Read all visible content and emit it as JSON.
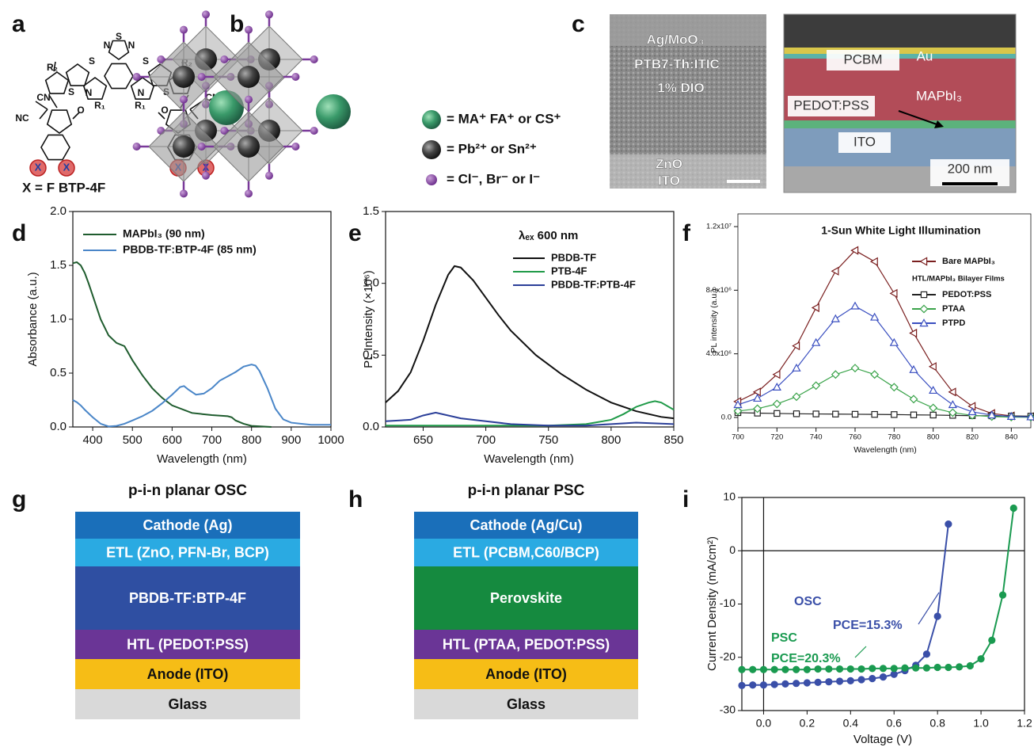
{
  "panel_labels": [
    "a",
    "b",
    "c",
    "d",
    "e",
    "f",
    "g",
    "h",
    "i"
  ],
  "molecule": {
    "atoms": [
      "S",
      "N",
      "N",
      "S",
      "S",
      "R₂",
      "R₂",
      "S",
      "N",
      "N",
      "S",
      "R₁",
      "R₁",
      "CN",
      "NC",
      "O",
      "O",
      "CN",
      "CN",
      "X",
      "X",
      "X",
      "X"
    ],
    "caption": "X = F BTP-4F"
  },
  "crystal": {
    "legend": [
      "= MA⁺ FA⁺ or CS⁺",
      "= Pb²⁺ or Sn²⁺",
      "= Cl⁻, Br⁻ or I⁻"
    ]
  },
  "micrographs": [
    {
      "labels": [
        "Ag/MoO₃",
        "PTB7-Th:ITIC",
        "1% DIO",
        "ZnO",
        "ITO"
      ]
    },
    {
      "labels": [
        "PCBM",
        "Au",
        "MAPbI₃",
        "PEDOT:PSS",
        "ITO",
        "200 nm"
      ]
    }
  ],
  "stacks": [
    {
      "title": "p-i-n planar OSC",
      "layers": [
        {
          "label": "Cathode (Ag)",
          "color": "#1a6fba"
        },
        {
          "label": "ETL (ZnO, PFN-Br, BCP)",
          "color": "#2aaae2"
        },
        {
          "label": "PBDB-TF:BTP-4F",
          "color": "#2f4fa2"
        },
        {
          "label": "HTL (PEDOT:PSS)",
          "color": "#6a3596"
        },
        {
          "label": "Anode (ITO)",
          "color": "#f6bd16"
        },
        {
          "label": "Glass",
          "color": "#d9d9d9"
        }
      ]
    },
    {
      "title": "p-i-n planar PSC",
      "layers": [
        {
          "label": "Cathode (Ag/Cu)",
          "color": "#1a6fba"
        },
        {
          "label": "ETL (PCBM,C60/BCP)",
          "color": "#2aaae2"
        },
        {
          "label": "Perovskite",
          "color": "#158a3f"
        },
        {
          "label": "HTL (PTAA, PEDOT:PSS)",
          "color": "#6a3596"
        },
        {
          "label": "Anode (ITO)",
          "color": "#f6bd16"
        },
        {
          "label": "Glass",
          "color": "#d9d9d9"
        }
      ]
    }
  ],
  "chart_data": [
    {
      "type": "line",
      "xlabel": "Wavelength (nm)",
      "ylabel": "Absorbance (a.u.)",
      "xlim": [
        350,
        1000
      ],
      "xticks": [
        400,
        500,
        600,
        700,
        800,
        900,
        1000
      ],
      "ylim": [
        0,
        2
      ],
      "yticks": [
        {
          "value": 0,
          "label": "0.0"
        },
        0.5,
        {
          "value": 1,
          "label": "1.0"
        },
        1.5,
        {
          "value": 2,
          "label": "2.0"
        }
      ],
      "legend": "upper left",
      "series": [
        {
          "name": "MAPbI₃ (90 nm)",
          "color": "#1f5c2e",
          "x": [
            350,
            360,
            370,
            380,
            390,
            400,
            420,
            440,
            460,
            480,
            500,
            525,
            550,
            575,
            600,
            650,
            700,
            740,
            750,
            760,
            780,
            800,
            850
          ],
          "values": [
            1.52,
            1.53,
            1.5,
            1.43,
            1.33,
            1.22,
            1.0,
            0.85,
            0.78,
            0.75,
            0.62,
            0.48,
            0.36,
            0.27,
            0.2,
            0.13,
            0.11,
            0.1,
            0.09,
            0.06,
            0.03,
            0.01,
            0
          ]
        },
        {
          "name": "PBDB-TF:BTP-4F (85 nm)",
          "color": "#4a86c8",
          "x": [
            350,
            360,
            370,
            380,
            400,
            420,
            440,
            460,
            480,
            500,
            525,
            550,
            575,
            600,
            620,
            630,
            640,
            660,
            680,
            700,
            720,
            740,
            760,
            780,
            800,
            810,
            820,
            840,
            860,
            880,
            900,
            950,
            1000
          ],
          "values": [
            0.25,
            0.23,
            0.2,
            0.16,
            0.09,
            0.03,
            0.005,
            0.01,
            0.03,
            0.06,
            0.1,
            0.15,
            0.22,
            0.3,
            0.37,
            0.38,
            0.35,
            0.3,
            0.31,
            0.36,
            0.43,
            0.47,
            0.51,
            0.56,
            0.58,
            0.57,
            0.52,
            0.36,
            0.17,
            0.07,
            0.04,
            0.02,
            0.02
          ]
        }
      ]
    },
    {
      "type": "line",
      "xlabel": "Wavelength (nm)",
      "ylabel": "PL Intensity (×10⁶)",
      "annotation": "λₑₓ 600 nm",
      "xlim": [
        620,
        850
      ],
      "xticks": [
        650,
        700,
        750,
        800,
        850
      ],
      "ylim": [
        0,
        1.5
      ],
      "yticks": [
        {
          "value": 0,
          "label": "0.0"
        },
        0.5,
        {
          "value": 1,
          "label": "1.0"
        },
        1.5
      ],
      "legend": "upper right",
      "series": [
        {
          "name": "PBDB-TF",
          "color": "#111111",
          "x": [
            620,
            630,
            640,
            650,
            660,
            670,
            675,
            680,
            690,
            700,
            710,
            720,
            740,
            760,
            780,
            800,
            820,
            840,
            850
          ],
          "values": [
            0.17,
            0.25,
            0.38,
            0.6,
            0.85,
            1.06,
            1.12,
            1.11,
            1.02,
            0.9,
            0.78,
            0.67,
            0.5,
            0.37,
            0.26,
            0.17,
            0.11,
            0.07,
            0.06
          ]
        },
        {
          "name": "PTB-4F",
          "color": "#1f9a48",
          "x": [
            620,
            650,
            700,
            750,
            780,
            800,
            810,
            820,
            830,
            835,
            840,
            850
          ],
          "values": [
            0.01,
            0.01,
            0.01,
            0.01,
            0.02,
            0.05,
            0.09,
            0.14,
            0.17,
            0.18,
            0.17,
            0.12
          ]
        },
        {
          "name": "PBDB-TF:PTB-4F",
          "color": "#2b3f99",
          "x": [
            620,
            640,
            650,
            660,
            670,
            680,
            700,
            720,
            750,
            780,
            800,
            820,
            850
          ],
          "values": [
            0.04,
            0.05,
            0.08,
            0.1,
            0.08,
            0.06,
            0.04,
            0.02,
            0.01,
            0.01,
            0.02,
            0.03,
            0.02
          ]
        }
      ]
    },
    {
      "type": "line",
      "title": "1-Sun White Light Illumination",
      "xlabel": "Wavelength (nm)",
      "ylabel": "PL intensity (a.u.)",
      "legend_title": "HTL/MAPbI₃ Bilayer Films",
      "marker_filled": false,
      "xlim": [
        700,
        850
      ],
      "xticks": [
        700,
        720,
        740,
        760,
        780,
        800,
        820,
        840
      ],
      "ylim": [
        -650000,
        12800000
      ],
      "yticks": [
        {
          "value": 0,
          "label": "0.0"
        },
        {
          "value": 4000000,
          "label": "4.0x10⁶"
        },
        {
          "value": 8000000,
          "label": "8.0x10⁶"
        },
        {
          "value": 12000000,
          "label": "1.2x10⁷"
        }
      ],
      "legend": "upper right",
      "x": [
        700,
        710,
        720,
        730,
        740,
        750,
        760,
        770,
        780,
        790,
        800,
        810,
        820,
        830,
        840,
        850
      ],
      "series": [
        {
          "name": "Bare MAPbI₃",
          "color": "#7a1f1f",
          "marker": "triangle-left",
          "values": [
            1000000,
            1600000,
            2700000,
            4500000,
            6900000,
            9200000,
            10500000,
            9800000,
            7800000,
            5300000,
            3200000,
            1600000,
            700000,
            250000,
            100000,
            50000
          ]
        },
        {
          "name": "PEDOT:PSS",
          "color": "#222222",
          "marker": "square",
          "values": [
            300000,
            270000,
            250000,
            230000,
            220000,
            210000,
            200000,
            190000,
            180000,
            160000,
            150000,
            130000,
            110000,
            100000,
            90000,
            80000
          ]
        },
        {
          "name": "PTAA",
          "color": "#3aa34a",
          "marker": "diamond",
          "values": [
            400000,
            550000,
            850000,
            1300000,
            2000000,
            2700000,
            3100000,
            2700000,
            1900000,
            1150000,
            600000,
            300000,
            130000,
            50000,
            20000,
            10000
          ]
        },
        {
          "name": "PTPD",
          "color": "#3a4fc0",
          "marker": "triangle-up",
          "values": [
            800000,
            1200000,
            1900000,
            3100000,
            4700000,
            6200000,
            7000000,
            6300000,
            4700000,
            3000000,
            1700000,
            800000,
            350000,
            150000,
            60000,
            30000
          ]
        }
      ]
    },
    {
      "type": "line",
      "xlabel": "Voltage (V)",
      "ylabel": "Current Density (mA/cm²)",
      "zero_lines": true,
      "marker_filled": true,
      "annotations": [
        "OSC",
        "PCE=15.3%",
        "PSC",
        "PCE=20.3%"
      ],
      "xlim": [
        -0.1,
        1.2
      ],
      "xticks": [
        {
          "value": 0,
          "label": "0.0"
        },
        0.2,
        0.4,
        0.6,
        0.8,
        {
          "value": 1,
          "label": "1.0"
        },
        1.2
      ],
      "ylim": [
        -30,
        10
      ],
      "yticks": [
        -30,
        -20,
        -10,
        0,
        10
      ],
      "series": [
        {
          "name": "OSC",
          "color": "#3a4fa8",
          "marker": "circle",
          "x": [
            -0.1,
            -0.05,
            0,
            0.05,
            0.1,
            0.15,
            0.2,
            0.25,
            0.3,
            0.35,
            0.4,
            0.45,
            0.5,
            0.55,
            0.6,
            0.65,
            0.7,
            0.75,
            0.8,
            0.85
          ],
          "values": [
            -25.3,
            -25.2,
            -25.2,
            -25.1,
            -25.0,
            -24.9,
            -24.8,
            -24.7,
            -24.6,
            -24.5,
            -24.4,
            -24.2,
            -24.0,
            -23.7,
            -23.2,
            -22.5,
            -21.5,
            -19.4,
            -12.3,
            5.0
          ]
        },
        {
          "name": "PSC",
          "color": "#1a9a50",
          "marker": "circle",
          "x": [
            -0.1,
            -0.05,
            0,
            0.05,
            0.1,
            0.15,
            0.2,
            0.25,
            0.3,
            0.35,
            0.4,
            0.45,
            0.5,
            0.55,
            0.6,
            0.65,
            0.7,
            0.75,
            0.8,
            0.85,
            0.9,
            0.95,
            1,
            1.05,
            1.1,
            1.15
          ],
          "values": [
            -22.3,
            -22.3,
            -22.3,
            -22.3,
            -22.3,
            -22.3,
            -22.3,
            -22.2,
            -22.2,
            -22.2,
            -22.2,
            -22.2,
            -22.1,
            -22.1,
            -22.1,
            -22.0,
            -22.0,
            -22.0,
            -21.9,
            -21.9,
            -21.8,
            -21.6,
            -20.3,
            -16.8,
            -8.3,
            8.0
          ]
        }
      ]
    }
  ]
}
